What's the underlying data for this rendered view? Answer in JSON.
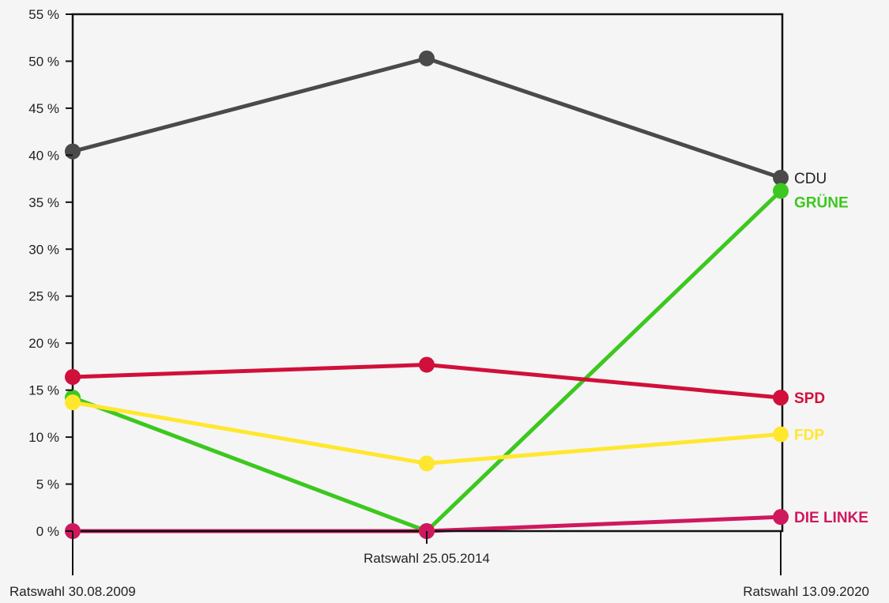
{
  "chart_data": {
    "type": "line",
    "title": "",
    "xlabel": "",
    "ylabel": "",
    "ylim": [
      0,
      55
    ],
    "yticks": [
      0,
      5,
      10,
      15,
      20,
      25,
      30,
      35,
      40,
      45,
      50,
      55
    ],
    "ytick_suffix": " %",
    "grid": false,
    "categories": [
      "Ratswahl 30.08.2009",
      "Ratswahl 25.05.2014",
      "Ratswahl 13.09.2020"
    ],
    "category_label_rows": [
      "low",
      "high",
      "low"
    ],
    "legend": "inline-right",
    "series": [
      {
        "name": "CDU",
        "color": "#4a4a4a",
        "values": [
          40.4,
          50.3,
          37.6
        ]
      },
      {
        "name": "GRÜNE",
        "color": "#3cc81e",
        "values": [
          14.2,
          0.0,
          36.2
        ]
      },
      {
        "name": "SPD",
        "color": "#d0103a",
        "values": [
          16.4,
          17.7,
          14.2
        ]
      },
      {
        "name": "FDP",
        "color": "#ffe72f",
        "values": [
          13.7,
          7.2,
          10.3
        ]
      },
      {
        "name": "DIE LINKE",
        "color": "#d0185e",
        "values": [
          0.0,
          0.0,
          1.5
        ]
      }
    ]
  }
}
